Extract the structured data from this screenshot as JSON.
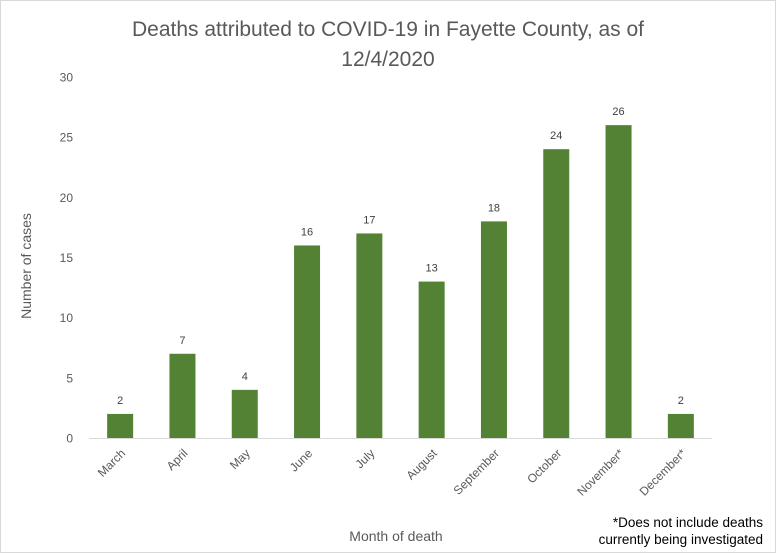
{
  "chart_data": {
    "type": "bar",
    "title_lines": [
      "Deaths attributed to COVID-19 in Fayette County, as of",
      "12/4/2020"
    ],
    "xlabel": "Month  of death",
    "ylabel": "Number  of cases",
    "categories": [
      "March",
      "April",
      "May",
      "June",
      "July",
      "August",
      "September",
      "October",
      "November*",
      "December*"
    ],
    "values": [
      2,
      7,
      4,
      16,
      17,
      13,
      18,
      24,
      26,
      2
    ],
    "ylim": [
      0,
      30
    ],
    "yticks": [
      0,
      5,
      10,
      15,
      20,
      25,
      30
    ],
    "grid": false,
    "legend": "none",
    "data_labels": true,
    "bar_color": "#548235",
    "note_lines": [
      "*Does not include deaths",
      "currently being investigated"
    ]
  }
}
